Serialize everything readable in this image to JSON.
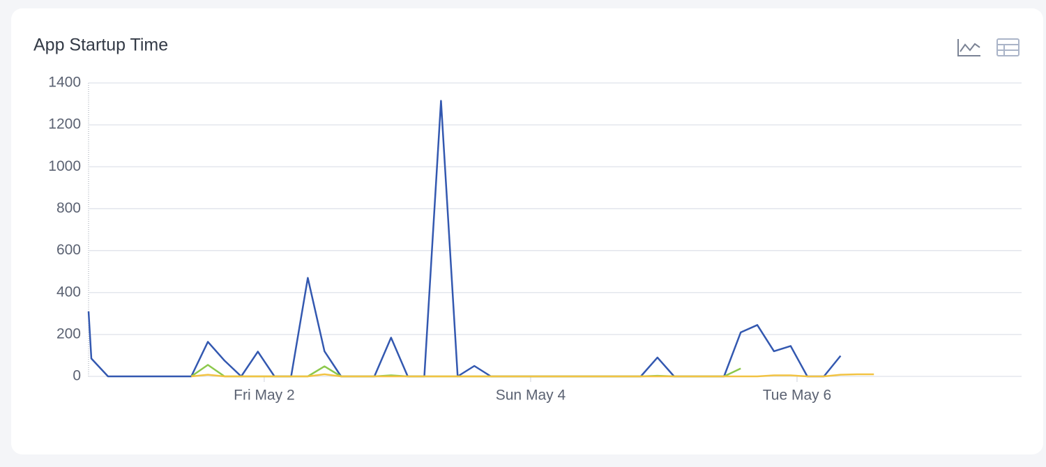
{
  "chart_data": {
    "type": "line",
    "title": "App Startup Time",
    "x": [
      0.681,
      0.702,
      0.827,
      0.952,
      1.077,
      1.202,
      1.327,
      1.452,
      1.577,
      1.702,
      1.827,
      1.952,
      2.077,
      2.202,
      2.327,
      2.452,
      2.577,
      2.702,
      2.827,
      2.952,
      3.077,
      3.202,
      3.327,
      3.452,
      3.577,
      3.702,
      3.827,
      3.952,
      4.077,
      4.202,
      4.327,
      4.452,
      4.577,
      4.702,
      4.827,
      4.952,
      5.077,
      5.202,
      5.327,
      5.452,
      5.577,
      5.702,
      5.827,
      5.952,
      6.077,
      6.202,
      6.327,
      6.452,
      6.577
    ],
    "series": [
      {
        "color": "#3358b0",
        "values": [
          310,
          85,
          0,
          0,
          0,
          0,
          0,
          0,
          165,
          75,
          0,
          118,
          0,
          0,
          470,
          120,
          0,
          0,
          0,
          185,
          0,
          0,
          1315,
          0,
          50,
          0,
          0,
          0,
          0,
          0,
          0,
          0,
          0,
          0,
          0,
          90,
          0,
          0,
          0,
          0,
          210,
          245,
          120,
          145,
          0,
          0,
          98,
          null,
          null
        ]
      },
      {
        "color": "#8cc84b",
        "values": [
          null,
          null,
          null,
          null,
          null,
          null,
          null,
          0,
          55,
          0,
          0,
          0,
          0,
          0,
          0,
          48,
          0,
          0,
          0,
          5,
          0,
          0,
          0,
          0,
          0,
          0,
          0,
          0,
          0,
          0,
          0,
          0,
          0,
          0,
          0,
          3,
          0,
          0,
          0,
          0,
          38,
          null,
          null,
          null,
          null,
          null,
          null,
          null,
          null
        ]
      },
      {
        "color": "#f2c343",
        "values": [
          null,
          null,
          null,
          null,
          null,
          null,
          null,
          0,
          8,
          0,
          0,
          0,
          0,
          0,
          0,
          10,
          0,
          0,
          0,
          0,
          0,
          0,
          0,
          0,
          0,
          0,
          0,
          0,
          0,
          0,
          0,
          0,
          0,
          0,
          0,
          0,
          0,
          0,
          0,
          0,
          0,
          0,
          5,
          5,
          0,
          0,
          8,
          10,
          10
        ]
      }
    ],
    "xlim": [
      0.681,
      7.686
    ],
    "xticks": [
      {
        "value": 2,
        "label": "Fri May 2"
      },
      {
        "value": 4,
        "label": "Sun May 4"
      },
      {
        "value": 6,
        "label": "Tue May 6"
      }
    ],
    "ylim": [
      0,
      1400
    ],
    "yticks": [
      0,
      200,
      400,
      600,
      800,
      1000,
      1200,
      1400
    ],
    "grid": true
  }
}
